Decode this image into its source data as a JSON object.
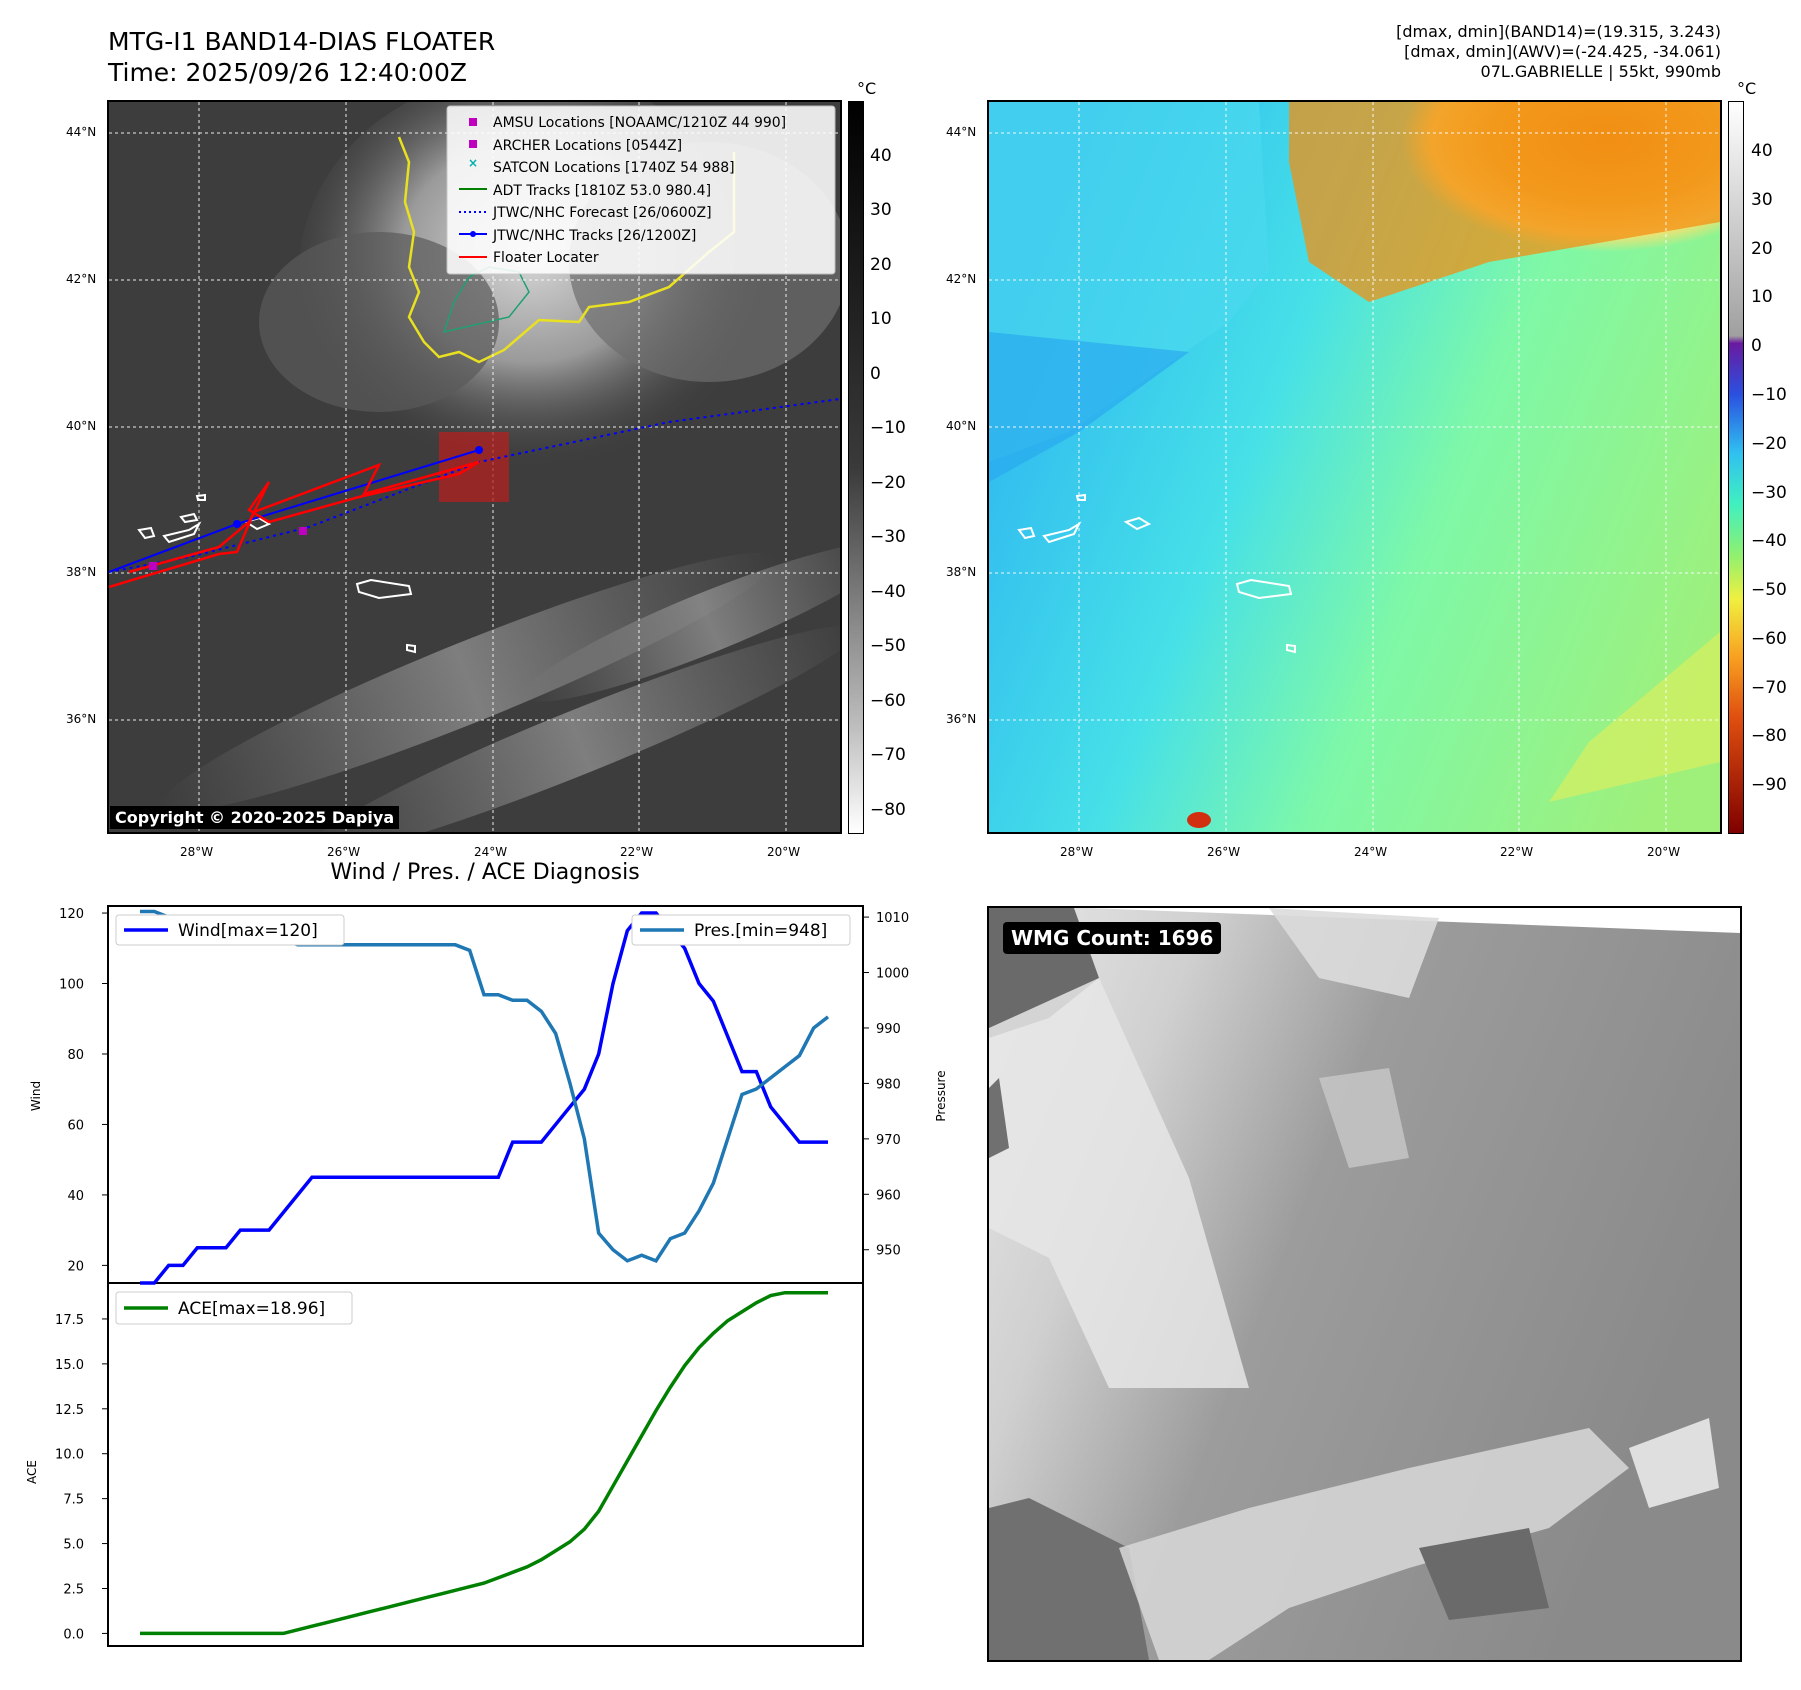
{
  "header": {
    "title_line1": "MTG-I1 BAND14-DIAS FLOATER",
    "title_line2": "Time: 2025/09/26 12:40:00Z",
    "right_line1": "[dmax, dmin](BAND14)=(19.315, 3.243)",
    "right_line2": "[dmax, dmin](AWV)=(-24.425, -34.061)",
    "right_line3": "07L.GABRIELLE | 55kt, 990mb"
  },
  "ir_map": {
    "unit": "°C",
    "colorbar_ticks": [
      "40",
      "30",
      "20",
      "10",
      "0",
      "−10",
      "−20",
      "−30",
      "−40",
      "−50",
      "−60",
      "−70",
      "−80"
    ],
    "lat_labels": [
      "44°N",
      "42°N",
      "40°N",
      "38°N",
      "36°N"
    ],
    "lon_labels": [
      "28°W",
      "26°W",
      "24°W",
      "22°W",
      "20°W"
    ],
    "copyright": "Copyright © 2020-2025 Dapiya",
    "legend": [
      {
        "label": "AMSU Locations [NOAAMC/1210Z 44 990]",
        "color": "#c000c0"
      },
      {
        "label": "ARCHER Locations [0544Z]",
        "color": "#c000c0"
      },
      {
        "label": "SATCON Locations [1740Z 54 988]",
        "color": "#00b0b0"
      },
      {
        "label": "ADT Tracks [1810Z 53.0 980.4]",
        "color": "#008000"
      },
      {
        "label": "JTWC/NHC Forecast [26/0600Z]",
        "color": "#0000ff"
      },
      {
        "label": "JTWC/NHC Tracks [26/1200Z]",
        "color": "#0000ff"
      },
      {
        "label": "Floater Locater",
        "color": "#ff0000"
      }
    ]
  },
  "wv_map": {
    "unit": "°C",
    "colorbar_ticks": [
      "40",
      "30",
      "20",
      "10",
      "0",
      "−10",
      "−20",
      "−30",
      "−40",
      "−50",
      "−60",
      "−70",
      "−80",
      "−90"
    ],
    "lat_labels": [
      "44°N",
      "42°N",
      "40°N",
      "38°N",
      "36°N"
    ],
    "lon_labels": [
      "28°W",
      "26°W",
      "24°W",
      "22°W",
      "20°W"
    ]
  },
  "wmg": {
    "label": "WMG Count: 1696"
  },
  "chart_data": [
    {
      "type": "line",
      "title": "Wind / Pres. / ACE Diagnosis",
      "ylabel": "Wind",
      "y2label": "Pressure",
      "ylim": [
        15,
        122
      ],
      "y2lim": [
        944,
        1012
      ],
      "yticks": [
        20,
        40,
        60,
        80,
        100,
        120
      ],
      "y2ticks": [
        950,
        960,
        970,
        980,
        990,
        1000,
        1010
      ],
      "series": [
        {
          "name": "Wind[max=120]",
          "color": "#0000ff",
          "values": [
            15,
            15,
            20,
            20,
            25,
            25,
            25,
            30,
            30,
            30,
            35,
            40,
            45,
            45,
            45,
            45,
            45,
            45,
            45,
            45,
            45,
            45,
            45,
            45,
            45,
            45,
            55,
            55,
            55,
            60,
            65,
            70,
            80,
            100,
            115,
            120,
            120,
            115,
            110,
            100,
            95,
            85,
            75,
            75,
            65,
            60,
            55,
            55,
            55
          ]
        },
        {
          "name": "Pres.[min=948]",
          "color": "#1f77b4",
          "axis": "right",
          "values": [
            1011,
            1011,
            1010,
            1010,
            1009,
            1008,
            1007,
            1007,
            1007,
            1006,
            1006,
            1005,
            1005,
            1005,
            1005,
            1005,
            1005,
            1005,
            1005,
            1005,
            1005,
            1005,
            1005,
            1004,
            996,
            996,
            995,
            995,
            993,
            989,
            980,
            970,
            953,
            950,
            948,
            949,
            948,
            952,
            953,
            957,
            962,
            970,
            978,
            979,
            981,
            983,
            985,
            990,
            992
          ]
        }
      ]
    },
    {
      "type": "line",
      "ylabel": "ACE",
      "ylim": [
        -0.7,
        19.5
      ],
      "yticks": [
        0.0,
        2.5,
        5.0,
        7.5,
        10.0,
        12.5,
        15.0,
        17.5
      ],
      "series": [
        {
          "name": "ACE[max=18.96]",
          "color": "#008000",
          "values": [
            0,
            0,
            0,
            0,
            0,
            0,
            0,
            0,
            0,
            0,
            0,
            0.2,
            0.4,
            0.6,
            0.8,
            1.0,
            1.2,
            1.4,
            1.6,
            1.8,
            2.0,
            2.2,
            2.4,
            2.6,
            2.8,
            3.1,
            3.4,
            3.7,
            4.1,
            4.6,
            5.1,
            5.8,
            6.8,
            8.2,
            9.6,
            11.0,
            12.4,
            13.7,
            14.9,
            15.9,
            16.7,
            17.4,
            17.9,
            18.4,
            18.8,
            18.96,
            18.96,
            18.96,
            18.96
          ]
        }
      ]
    }
  ]
}
